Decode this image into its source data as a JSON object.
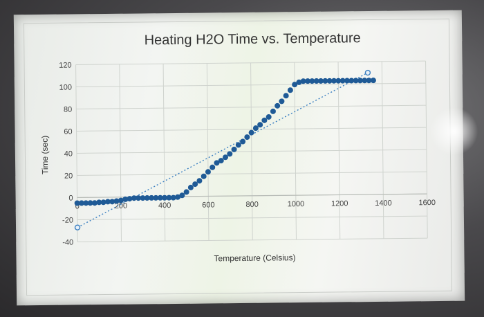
{
  "chart_data": {
    "type": "scatter",
    "title": "Heating H2O Time vs. Temperature",
    "xlabel": "Temperature (Celsius)",
    "ylabel": "Time (sec)",
    "xlim": [
      0,
      1600
    ],
    "ylim": [
      -40,
      120
    ],
    "x_ticks": [
      "0",
      "200",
      "400",
      "600",
      "800",
      "1000",
      "1200",
      "1400",
      "1600"
    ],
    "y_ticks": [
      "120",
      "100",
      "80",
      "60",
      "40",
      "20",
      "0",
      "-20",
      "-40"
    ],
    "grid": true,
    "series": [
      {
        "marker": "filled-circle",
        "color": "#1f5a96",
        "points": [
          [
            0,
            -5
          ],
          [
            20,
            -5
          ],
          [
            40,
            -5
          ],
          [
            60,
            -5
          ],
          [
            80,
            -5
          ],
          [
            100,
            -4.5
          ],
          [
            120,
            -4.5
          ],
          [
            140,
            -4
          ],
          [
            160,
            -4
          ],
          [
            180,
            -3.5
          ],
          [
            200,
            -3
          ],
          [
            220,
            -2
          ],
          [
            240,
            -1.5
          ],
          [
            260,
            -1
          ],
          [
            280,
            -1
          ],
          [
            300,
            -1
          ],
          [
            320,
            -1
          ],
          [
            340,
            -1
          ],
          [
            360,
            -1
          ],
          [
            380,
            -1
          ],
          [
            400,
            -1
          ],
          [
            420,
            -1
          ],
          [
            440,
            -1
          ],
          [
            460,
            -0.5
          ],
          [
            480,
            1
          ],
          [
            500,
            4
          ],
          [
            520,
            8
          ],
          [
            540,
            11
          ],
          [
            560,
            14
          ],
          [
            580,
            18
          ],
          [
            600,
            22
          ],
          [
            620,
            26
          ],
          [
            640,
            30
          ],
          [
            660,
            32
          ],
          [
            680,
            35
          ],
          [
            700,
            38
          ],
          [
            720,
            42
          ],
          [
            740,
            46
          ],
          [
            760,
            49
          ],
          [
            780,
            53
          ],
          [
            800,
            57
          ],
          [
            820,
            61
          ],
          [
            840,
            64
          ],
          [
            860,
            68
          ],
          [
            880,
            71
          ],
          [
            900,
            76
          ],
          [
            920,
            81
          ],
          [
            940,
            85
          ],
          [
            960,
            90
          ],
          [
            980,
            95
          ],
          [
            1000,
            100
          ],
          [
            1020,
            102
          ],
          [
            1040,
            103
          ],
          [
            1060,
            103
          ],
          [
            1080,
            103
          ],
          [
            1100,
            103
          ],
          [
            1120,
            103
          ],
          [
            1140,
            103
          ],
          [
            1160,
            103
          ],
          [
            1180,
            103
          ],
          [
            1200,
            103
          ],
          [
            1220,
            103
          ],
          [
            1240,
            103
          ],
          [
            1260,
            103
          ],
          [
            1280,
            103
          ],
          [
            1300,
            103
          ],
          [
            1320,
            103
          ],
          [
            1340,
            103
          ],
          [
            1360,
            103
          ]
        ]
      },
      {
        "marker": "open-circle",
        "line": "dotted",
        "color": "#3a7fc1",
        "points": [
          [
            0,
            -27
          ],
          [
            1335,
            110
          ]
        ]
      }
    ]
  }
}
